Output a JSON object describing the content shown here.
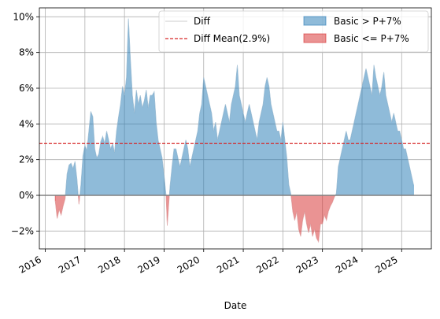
{
  "chart_data": {
    "type": "area",
    "xlabel": "Date",
    "ylabel": "",
    "x_tick_labels": [
      "2016",
      "2017",
      "2018",
      "2019",
      "2020",
      "2021",
      "2022",
      "2023",
      "2024",
      "2025"
    ],
    "y_tick_labels": [
      "−2%",
      "0%",
      "2%",
      "4%",
      "6%",
      "8%",
      "10%"
    ],
    "y_ticks": [
      -2,
      0,
      2,
      4,
      6,
      8,
      10
    ],
    "xlim": [
      2015.85,
      2025.75
    ],
    "ylim": [
      -3.0,
      10.5
    ],
    "grid": true,
    "legend_position": "upper-right",
    "mean_value": 2.9,
    "colors": {
      "diff_line": "#dddddd",
      "mean_line": "#d62728",
      "positive_fill": "#1f77b4",
      "negative_fill": "#d62728"
    },
    "series": [
      {
        "name": "Diff",
        "points": [
          [
            2016.25,
            -0.3
          ],
          [
            2016.3,
            -1.3
          ],
          [
            2016.35,
            -0.8
          ],
          [
            2016.4,
            -1.1
          ],
          [
            2016.45,
            -0.6
          ],
          [
            2016.5,
            -0.2
          ],
          [
            2016.55,
            1.2
          ],
          [
            2016.6,
            1.7
          ],
          [
            2016.65,
            1.8
          ],
          [
            2016.7,
            1.5
          ],
          [
            2016.75,
            1.9
          ],
          [
            2016.8,
            0.9
          ],
          [
            2016.85,
            -0.5
          ],
          [
            2016.9,
            0.6
          ],
          [
            2016.95,
            2.2
          ],
          [
            2017.0,
            2.8
          ],
          [
            2017.05,
            2.5
          ],
          [
            2017.1,
            3.6
          ],
          [
            2017.15,
            4.7
          ],
          [
            2017.2,
            4.4
          ],
          [
            2017.25,
            2.6
          ],
          [
            2017.3,
            2.1
          ],
          [
            2017.35,
            2.3
          ],
          [
            2017.4,
            3.0
          ],
          [
            2017.45,
            3.3
          ],
          [
            2017.5,
            2.9
          ],
          [
            2017.55,
            3.6
          ],
          [
            2017.6,
            3.1
          ],
          [
            2017.65,
            2.6
          ],
          [
            2017.7,
            2.9
          ],
          [
            2017.75,
            2.4
          ],
          [
            2017.8,
            3.6
          ],
          [
            2017.85,
            4.4
          ],
          [
            2017.9,
            5.1
          ],
          [
            2017.95,
            6.1
          ],
          [
            2018.0,
            5.6
          ],
          [
            2018.05,
            6.6
          ],
          [
            2018.1,
            9.9
          ],
          [
            2018.15,
            7.6
          ],
          [
            2018.2,
            5.6
          ],
          [
            2018.25,
            4.6
          ],
          [
            2018.3,
            5.9
          ],
          [
            2018.35,
            5.1
          ],
          [
            2018.4,
            5.6
          ],
          [
            2018.45,
            4.9
          ],
          [
            2018.5,
            5.3
          ],
          [
            2018.55,
            5.9
          ],
          [
            2018.6,
            4.9
          ],
          [
            2018.65,
            5.6
          ],
          [
            2018.7,
            5.6
          ],
          [
            2018.75,
            5.8
          ],
          [
            2018.8,
            4.1
          ],
          [
            2018.85,
            3.1
          ],
          [
            2018.9,
            2.6
          ],
          [
            2018.95,
            2.1
          ],
          [
            2019.0,
            1.1
          ],
          [
            2019.05,
            0.0
          ],
          [
            2019.08,
            -1.7
          ],
          [
            2019.12,
            -0.4
          ],
          [
            2019.15,
            0.5
          ],
          [
            2019.2,
            1.6
          ],
          [
            2019.25,
            2.6
          ],
          [
            2019.3,
            2.6
          ],
          [
            2019.35,
            2.1
          ],
          [
            2019.4,
            1.6
          ],
          [
            2019.45,
            2.1
          ],
          [
            2019.5,
            2.6
          ],
          [
            2019.55,
            3.1
          ],
          [
            2019.6,
            2.6
          ],
          [
            2019.65,
            1.6
          ],
          [
            2019.7,
            2.1
          ],
          [
            2019.75,
            2.6
          ],
          [
            2019.8,
            3.1
          ],
          [
            2019.85,
            3.6
          ],
          [
            2019.9,
            4.6
          ],
          [
            2019.95,
            5.1
          ],
          [
            2020.0,
            6.6
          ],
          [
            2020.05,
            6.1
          ],
          [
            2020.1,
            5.6
          ],
          [
            2020.15,
            5.1
          ],
          [
            2020.2,
            4.6
          ],
          [
            2020.25,
            3.6
          ],
          [
            2020.3,
            4.1
          ],
          [
            2020.35,
            3.1
          ],
          [
            2020.4,
            3.6
          ],
          [
            2020.45,
            4.1
          ],
          [
            2020.5,
            4.6
          ],
          [
            2020.55,
            5.1
          ],
          [
            2020.6,
            4.6
          ],
          [
            2020.65,
            4.1
          ],
          [
            2020.7,
            5.1
          ],
          [
            2020.75,
            5.6
          ],
          [
            2020.8,
            6.1
          ],
          [
            2020.85,
            7.3
          ],
          [
            2020.9,
            5.6
          ],
          [
            2020.95,
            5.1
          ],
          [
            2021.0,
            4.6
          ],
          [
            2021.05,
            4.1
          ],
          [
            2021.1,
            4.6
          ],
          [
            2021.15,
            5.1
          ],
          [
            2021.2,
            4.6
          ],
          [
            2021.25,
            4.1
          ],
          [
            2021.3,
            3.6
          ],
          [
            2021.35,
            3.1
          ],
          [
            2021.4,
            4.1
          ],
          [
            2021.45,
            4.6
          ],
          [
            2021.5,
            5.1
          ],
          [
            2021.55,
            6.1
          ],
          [
            2021.6,
            6.6
          ],
          [
            2021.65,
            6.1
          ],
          [
            2021.7,
            5.1
          ],
          [
            2021.75,
            4.6
          ],
          [
            2021.8,
            4.1
          ],
          [
            2021.85,
            3.6
          ],
          [
            2021.9,
            3.6
          ],
          [
            2021.95,
            3.1
          ],
          [
            2022.0,
            4.1
          ],
          [
            2022.05,
            3.1
          ],
          [
            2022.1,
            2.1
          ],
          [
            2022.15,
            0.6
          ],
          [
            2022.2,
            0.1
          ],
          [
            2022.25,
            -0.9
          ],
          [
            2022.3,
            -1.4
          ],
          [
            2022.35,
            -0.9
          ],
          [
            2022.4,
            -1.9
          ],
          [
            2022.45,
            -2.3
          ],
          [
            2022.5,
            -1.4
          ],
          [
            2022.55,
            -0.9
          ],
          [
            2022.6,
            -1.6
          ],
          [
            2022.65,
            -2.1
          ],
          [
            2022.7,
            -1.6
          ],
          [
            2022.75,
            -2.3
          ],
          [
            2022.8,
            -1.9
          ],
          [
            2022.85,
            -2.4
          ],
          [
            2022.9,
            -2.6
          ],
          [
            2022.95,
            -1.6
          ],
          [
            2023.0,
            -1.6
          ],
          [
            2023.05,
            -1.1
          ],
          [
            2023.1,
            -1.4
          ],
          [
            2023.15,
            -0.9
          ],
          [
            2023.2,
            -0.6
          ],
          [
            2023.25,
            -0.4
          ],
          [
            2023.3,
            -0.1
          ],
          [
            2023.35,
            0.1
          ],
          [
            2023.4,
            1.6
          ],
          [
            2023.45,
            2.1
          ],
          [
            2023.5,
            2.6
          ],
          [
            2023.55,
            3.1
          ],
          [
            2023.6,
            3.6
          ],
          [
            2023.65,
            3.1
          ],
          [
            2023.7,
            3.1
          ],
          [
            2023.75,
            3.6
          ],
          [
            2023.8,
            4.1
          ],
          [
            2023.85,
            4.6
          ],
          [
            2023.9,
            5.1
          ],
          [
            2023.95,
            5.6
          ],
          [
            2024.0,
            6.1
          ],
          [
            2024.05,
            6.6
          ],
          [
            2024.1,
            7.1
          ],
          [
            2024.15,
            6.6
          ],
          [
            2024.2,
            6.1
          ],
          [
            2024.25,
            5.6
          ],
          [
            2024.3,
            7.3
          ],
          [
            2024.35,
            6.6
          ],
          [
            2024.4,
            6.1
          ],
          [
            2024.45,
            5.6
          ],
          [
            2024.5,
            6.1
          ],
          [
            2024.55,
            6.9
          ],
          [
            2024.6,
            5.6
          ],
          [
            2024.65,
            5.1
          ],
          [
            2024.7,
            4.6
          ],
          [
            2024.75,
            4.1
          ],
          [
            2024.8,
            4.6
          ],
          [
            2024.85,
            4.1
          ],
          [
            2024.9,
            3.6
          ],
          [
            2024.95,
            3.6
          ],
          [
            2025.0,
            3.1
          ],
          [
            2025.05,
            2.6
          ],
          [
            2025.1,
            2.6
          ],
          [
            2025.15,
            2.1
          ],
          [
            2025.2,
            1.6
          ],
          [
            2025.25,
            1.1
          ],
          [
            2025.3,
            0.6
          ]
        ]
      },
      {
        "name": "Diff Mean(2.9%)",
        "value": 2.9
      },
      {
        "name": "Basic > P+7%"
      },
      {
        "name": "Basic <= P+7%"
      }
    ]
  }
}
